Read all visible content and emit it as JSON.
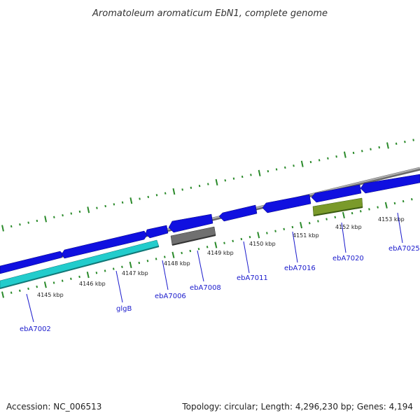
{
  "title": "Aromatoleum aromaticum EbN1, complete genome",
  "footer": {
    "accession": "Accession: NC_006513",
    "summary": "Topology: circular; Length: 4,296,230 bp; Genes: 4,194"
  },
  "colors": {
    "backbone": "#8c8c8c",
    "forward_gene": "#1010e0",
    "reverse_gene": "#1010e0",
    "rRNA_like": "#22cccc",
    "pseudo": "#707070",
    "olive_feature": "#7a9a2a",
    "tick": "#2a8a2a",
    "label": "#1a1acc"
  },
  "scale_labels": [
    "4145 kbp",
    "4146 kbp",
    "4147 kbp",
    "4148 kbp",
    "4149 kbp",
    "4150 kbp",
    "4151 kbp",
    "4152 kbp",
    "4153 kbp"
  ],
  "gene_labels": [
    "ebA7002",
    "glgB",
    "ebA7006",
    "ebA7008",
    "ebA7011",
    "ebA7016",
    "ebA7020",
    "ebA7025"
  ]
}
